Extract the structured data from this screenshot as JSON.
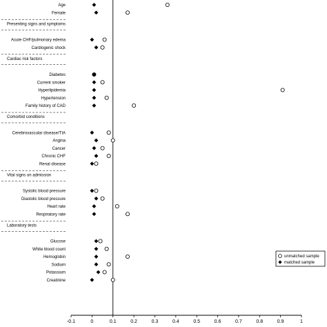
{
  "chart_data": {
    "type": "scatter",
    "title": "",
    "xlabel": "",
    "ylabel": "",
    "xlim": [
      -0.1,
      1
    ],
    "x_ticks": [
      "-0.1",
      "0",
      "0.1",
      "0.2",
      "0.3",
      "0.4",
      "0.5",
      "0.6",
      "0.7",
      "0.8",
      "0.9",
      "1"
    ],
    "reference_line_x": 0.1,
    "legend": {
      "position": "bottom-right",
      "entries": [
        {
          "series": "unmatched",
          "label": "unmatched sample"
        },
        {
          "series": "matched",
          "label": "matched sample"
        }
      ]
    },
    "series": [
      {
        "name": "unmatched sample",
        "marker": "open-circle"
      },
      {
        "name": "matched sample",
        "marker": "filled-diamond"
      }
    ],
    "rows": [
      {
        "label": "Age",
        "kind": "var",
        "unmatched": 0.36,
        "matched": 0.01
      },
      {
        "label": "Female",
        "kind": "var",
        "unmatched": 0.17,
        "matched": 0.02
      },
      {
        "label": "Presenting signs and symptoms",
        "kind": "header"
      },
      {
        "label": "Acute CHF/pulmonary edema",
        "kind": "var",
        "unmatched": 0.06,
        "matched": 0.0
      },
      {
        "label": "Cardiogenic shock",
        "kind": "var",
        "unmatched": 0.05,
        "matched": 0.02
      },
      {
        "label": "Cardiac risk factors",
        "kind": "header"
      },
      {
        "label": "Diabetes",
        "kind": "var",
        "unmatched": 0.01,
        "matched": 0.01
      },
      {
        "label": "Current smoker",
        "kind": "var",
        "unmatched": 0.05,
        "matched": 0.01
      },
      {
        "label": "Hyperlipidemia",
        "kind": "var",
        "unmatched": 0.91,
        "matched": 0.01
      },
      {
        "label": "Hypertension",
        "kind": "var",
        "unmatched": 0.07,
        "matched": 0.01
      },
      {
        "label": "Family history of CAD",
        "kind": "var",
        "unmatched": 0.2,
        "matched": 0.01
      },
      {
        "label": "Comorbid conditions",
        "kind": "header"
      },
      {
        "label": "Cerebrovascular disease/TIA",
        "kind": "var",
        "unmatched": 0.08,
        "matched": 0.0
      },
      {
        "label": "Angina",
        "kind": "var",
        "unmatched": 0.1,
        "matched": 0.02
      },
      {
        "label": "Cancer",
        "kind": "var",
        "unmatched": 0.05,
        "matched": 0.01
      },
      {
        "label": "Chronic CHF",
        "kind": "var",
        "unmatched": 0.08,
        "matched": 0.02
      },
      {
        "label": "Renal disease",
        "kind": "var",
        "unmatched": 0.02,
        "matched": 0.0
      },
      {
        "label": "Vital signs on admission",
        "kind": "header"
      },
      {
        "label": "Systolic blood pressure",
        "kind": "var",
        "unmatched": 0.02,
        "matched": 0.0
      },
      {
        "label": "Diastolic blood pressure",
        "kind": "var",
        "unmatched": 0.05,
        "matched": 0.02
      },
      {
        "label": "Heart rate",
        "kind": "var",
        "unmatched": 0.12,
        "matched": 0.01
      },
      {
        "label": "Respiratory rate",
        "kind": "var",
        "unmatched": 0.17,
        "matched": 0.01
      },
      {
        "label": "Laboratory tests",
        "kind": "header"
      },
      {
        "label": "Glucose",
        "kind": "var",
        "unmatched": 0.04,
        "matched": 0.02
      },
      {
        "label": "White blood count",
        "kind": "var",
        "unmatched": 0.07,
        "matched": 0.02
      },
      {
        "label": "Hemoglobin",
        "kind": "var",
        "unmatched": 0.17,
        "matched": 0.02
      },
      {
        "label": "Sodium",
        "kind": "var",
        "unmatched": 0.08,
        "matched": 0.02
      },
      {
        "label": "Potassium",
        "kind": "var",
        "unmatched": 0.06,
        "matched": 0.03
      },
      {
        "label": "Creatinine",
        "kind": "var",
        "unmatched": 0.1,
        "matched": 0.0
      }
    ]
  }
}
